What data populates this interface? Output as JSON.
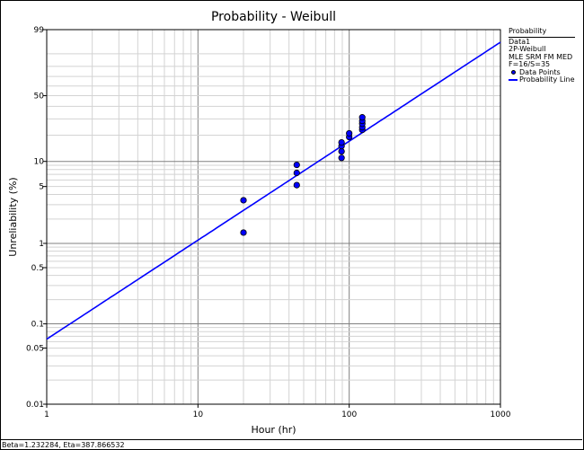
{
  "chart_data": {
    "type": "scatter",
    "title": "Probability - Weibull",
    "xlabel": "Hour (hr)",
    "ylabel": "Unreliability (%)",
    "x_scale": "log",
    "y_scale": "weibull",
    "xlim": [
      1,
      1000
    ],
    "ylim": [
      0.01,
      99
    ],
    "x_ticks": [
      "1",
      "10",
      "100",
      "1000"
    ],
    "y_ticks": [
      "99",
      "50",
      "10",
      "5",
      "1",
      "0.5",
      "0.1",
      "0.05",
      "0.01"
    ],
    "grid": true,
    "legend_placement": "right",
    "colors": {
      "points": "#0000ff",
      "line": "#0000ff",
      "major_grid": "#808080",
      "minor_grid": "#d3d3d3"
    },
    "series": [
      {
        "name": "Data Points",
        "type": "scatter",
        "x": [
          20,
          20,
          45,
          45,
          45,
          89,
          89,
          89,
          89,
          100,
          100,
          122,
          122,
          122,
          122,
          122
        ],
        "y": [
          3.4,
          1.36,
          9.1,
          7.3,
          5.2,
          11.0,
          13.1,
          15.1,
          16.6,
          19.1,
          21.0,
          22.9,
          24.5,
          26.7,
          28.6,
          31.1
        ]
      },
      {
        "name": "Probability Line",
        "type": "line",
        "beta": 1.232284,
        "eta": 387.866532
      }
    ]
  },
  "legend": {
    "header": "Probability",
    "lines": [
      "Data1",
      "2P-Weibull",
      "MLE SRM FM MED",
      "F=16/S=35"
    ],
    "items": [
      "Data Points",
      "Probability Line"
    ]
  },
  "status": "Beta=1.232284, Eta=387.866532"
}
